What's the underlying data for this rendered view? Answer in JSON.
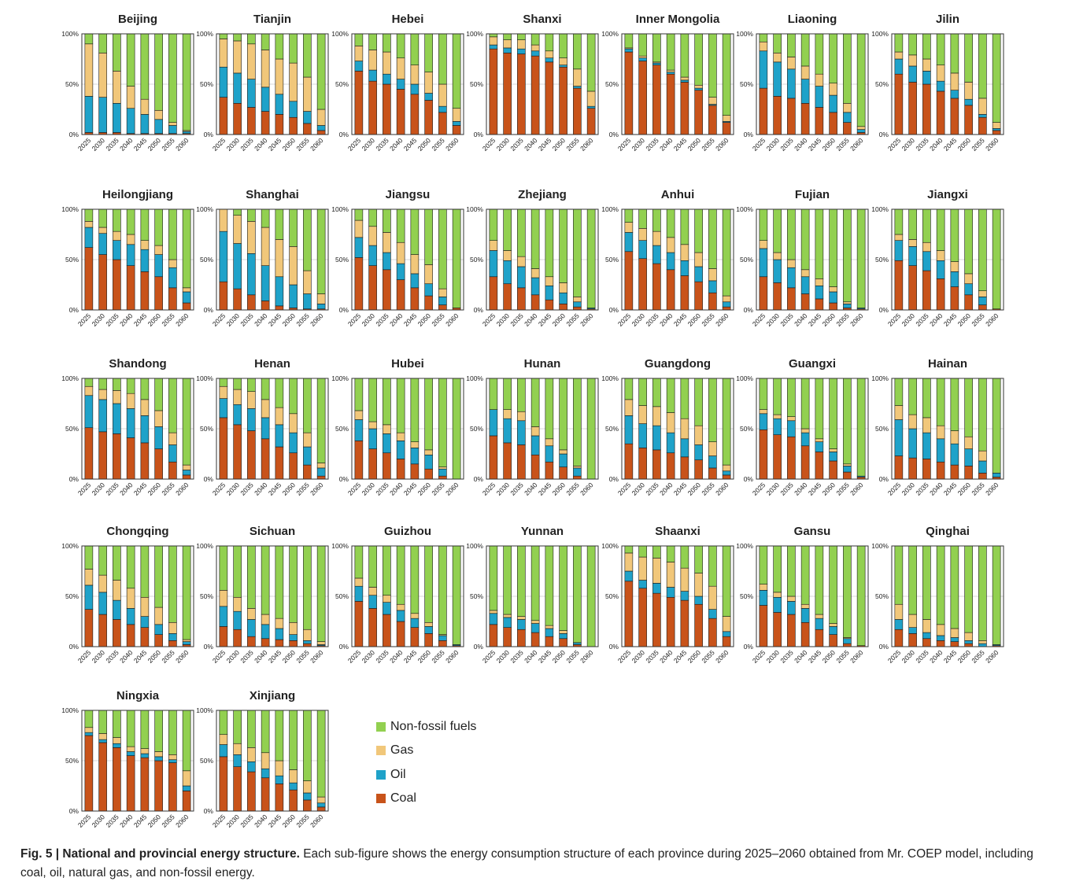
{
  "caption": {
    "label": "Fig. 5 | National and provincial energy structure.",
    "text": " Each sub-figure shows the energy consumption structure of each province during 2025–2060 obtained from Mr. COEP model, including coal, oil, natural gas, and non-fossil energy."
  },
  "legend": [
    {
      "name": "Non-fossil fuels",
      "color": "#92d050"
    },
    {
      "name": "Gas",
      "color": "#f1c77a"
    },
    {
      "name": "Oil",
      "color": "#1fa2c9"
    },
    {
      "name": "Coal",
      "color": "#c8531a"
    }
  ],
  "chart_data": {
    "type": "bar",
    "stacked": true,
    "categories": [
      "2025",
      "2030",
      "2035",
      "2040",
      "2045",
      "2050",
      "2055",
      "2060"
    ],
    "ylim": [
      0,
      100
    ],
    "yticks": [
      "0%",
      "50%",
      "100%"
    ],
    "series_order": [
      "Coal",
      "Oil",
      "Gas",
      "Non-fossil fuels"
    ],
    "colors": {
      "Coal": "#c8531a",
      "Oil": "#1fa2c9",
      "Gas": "#f1c77a",
      "Non-fossil fuels": "#92d050"
    },
    "panels": [
      {
        "title": "Beijing",
        "coal": [
          2,
          2,
          2,
          1,
          1,
          1,
          1,
          1
        ],
        "oil": [
          36,
          35,
          29,
          25,
          19,
          14,
          8,
          2
        ],
        "gas": [
          52,
          44,
          32,
          22,
          15,
          9,
          3,
          1
        ]
      },
      {
        "title": "Tianjin",
        "coal": [
          37,
          31,
          27,
          23,
          20,
          17,
          11,
          4
        ],
        "oil": [
          30,
          30,
          28,
          24,
          20,
          16,
          12,
          5
        ],
        "gas": [
          28,
          32,
          35,
          37,
          35,
          38,
          34,
          16
        ]
      },
      {
        "title": "Hebei",
        "coal": [
          63,
          53,
          50,
          45,
          40,
          34,
          22,
          9
        ],
        "oil": [
          10,
          11,
          10,
          10,
          10,
          7,
          6,
          4
        ],
        "gas": [
          15,
          20,
          22,
          21,
          19,
          21,
          22,
          13
        ]
      },
      {
        "title": "Shanxi",
        "coal": [
          85,
          81,
          80,
          78,
          72,
          67,
          46,
          26
        ],
        "oil": [
          4,
          5,
          5,
          5,
          4,
          2,
          2,
          2
        ],
        "gas": [
          8,
          8,
          9,
          6,
          7,
          7,
          17,
          15
        ]
      },
      {
        "title": "Inner Mongolia",
        "coal": [
          82,
          73,
          69,
          60,
          52,
          44,
          29,
          12
        ],
        "oil": [
          3,
          3,
          2,
          2,
          2,
          2,
          1,
          1
        ],
        "gas": [
          1,
          2,
          1,
          2,
          3,
          3,
          7,
          6
        ]
      },
      {
        "title": "Liaoning",
        "coal": [
          46,
          38,
          36,
          31,
          27,
          22,
          12,
          2
        ],
        "oil": [
          37,
          34,
          29,
          24,
          21,
          17,
          10,
          3
        ],
        "gas": [
          9,
          9,
          12,
          13,
          12,
          12,
          9,
          3
        ]
      },
      {
        "title": "Jilin",
        "coal": [
          60,
          52,
          50,
          43,
          36,
          29,
          17,
          4
        ],
        "oil": [
          15,
          16,
          13,
          10,
          8,
          6,
          3,
          2
        ],
        "gas": [
          7,
          11,
          12,
          16,
          17,
          17,
          16,
          6
        ]
      },
      {
        "title": "Heilongjiang",
        "coal": [
          62,
          55,
          50,
          44,
          38,
          33,
          22,
          7
        ],
        "oil": [
          20,
          21,
          19,
          21,
          22,
          22,
          20,
          11
        ],
        "gas": [
          6,
          6,
          9,
          10,
          9,
          9,
          8,
          4
        ]
      },
      {
        "title": "Shanghai",
        "coal": [
          28,
          21,
          15,
          9,
          4,
          2,
          1,
          1
        ],
        "oil": [
          50,
          45,
          41,
          35,
          29,
          23,
          15,
          5
        ],
        "gas": [
          22,
          28,
          32,
          38,
          37,
          38,
          23,
          10
        ]
      },
      {
        "title": "Jiangsu",
        "coal": [
          52,
          44,
          40,
          30,
          22,
          14,
          5,
          2
        ],
        "oil": [
          20,
          20,
          17,
          16,
          14,
          12,
          8,
          0
        ],
        "gas": [
          17,
          19,
          20,
          21,
          19,
          19,
          8,
          0
        ]
      },
      {
        "title": "Zhejiang",
        "coal": [
          33,
          26,
          22,
          15,
          10,
          6,
          3,
          1
        ],
        "oil": [
          26,
          23,
          21,
          17,
          14,
          11,
          5,
          1
        ],
        "gas": [
          10,
          10,
          10,
          9,
          9,
          10,
          5,
          0
        ]
      },
      {
        "title": "Anhui",
        "coal": [
          58,
          51,
          46,
          40,
          34,
          28,
          17,
          3
        ],
        "oil": [
          19,
          18,
          18,
          17,
          15,
          15,
          12,
          5
        ],
        "gas": [
          10,
          12,
          14,
          15,
          16,
          14,
          12,
          6
        ]
      },
      {
        "title": "Fujian",
        "coal": [
          33,
          27,
          22,
          16,
          11,
          7,
          2,
          1
        ],
        "oil": [
          28,
          23,
          20,
          17,
          13,
          11,
          4,
          1
        ],
        "gas": [
          8,
          7,
          8,
          7,
          7,
          5,
          2,
          0
        ]
      },
      {
        "title": "Jiangxi",
        "coal": [
          49,
          44,
          39,
          31,
          23,
          15,
          5,
          1
        ],
        "oil": [
          20,
          19,
          19,
          18,
          15,
          11,
          8,
          0
        ],
        "gas": [
          6,
          7,
          9,
          10,
          10,
          10,
          6,
          0
        ]
      },
      {
        "title": "Shandong",
        "coal": [
          51,
          47,
          45,
          41,
          36,
          30,
          17,
          4
        ],
        "oil": [
          32,
          32,
          30,
          29,
          27,
          22,
          17,
          5
        ],
        "gas": [
          9,
          10,
          13,
          15,
          16,
          16,
          12,
          5
        ]
      },
      {
        "title": "Henan",
        "coal": [
          61,
          54,
          48,
          40,
          32,
          26,
          14,
          3
        ],
        "oil": [
          19,
          20,
          22,
          21,
          22,
          20,
          18,
          8
        ],
        "gas": [
          12,
          15,
          17,
          18,
          17,
          19,
          14,
          5
        ]
      },
      {
        "title": "Hubei",
        "coal": [
          38,
          30,
          26,
          20,
          15,
          10,
          3,
          0
        ],
        "oil": [
          21,
          20,
          19,
          18,
          16,
          14,
          7,
          0
        ],
        "gas": [
          9,
          7,
          9,
          8,
          6,
          5,
          2,
          0
        ]
      },
      {
        "title": "Hunan",
        "coal": [
          43,
          36,
          34,
          24,
          17,
          12,
          3,
          0
        ],
        "oil": [
          26,
          24,
          24,
          19,
          16,
          13,
          8,
          0
        ],
        "gas": [
          0,
          9,
          9,
          9,
          7,
          4,
          2,
          0
        ]
      },
      {
        "title": "Guangdong",
        "coal": [
          35,
          31,
          29,
          26,
          22,
          19,
          11,
          4
        ],
        "oil": [
          28,
          24,
          24,
          20,
          18,
          15,
          12,
          4
        ],
        "gas": [
          16,
          18,
          19,
          20,
          20,
          19,
          14,
          6
        ]
      },
      {
        "title": "Guangxi",
        "coal": [
          49,
          44,
          42,
          33,
          27,
          18,
          7,
          2
        ],
        "oil": [
          16,
          16,
          16,
          13,
          10,
          9,
          6,
          1
        ],
        "gas": [
          4,
          4,
          4,
          4,
          3,
          3,
          2,
          0
        ]
      },
      {
        "title": "Hainan",
        "coal": [
          23,
          21,
          20,
          17,
          14,
          13,
          6,
          2
        ],
        "oil": [
          36,
          29,
          26,
          23,
          21,
          17,
          12,
          4
        ],
        "gas": [
          14,
          14,
          15,
          13,
          13,
          12,
          10,
          0
        ]
      },
      {
        "title": "Chongqing",
        "coal": [
          37,
          32,
          27,
          22,
          19,
          12,
          6,
          2
        ],
        "oil": [
          24,
          22,
          19,
          16,
          11,
          10,
          7,
          3
        ],
        "gas": [
          16,
          17,
          20,
          20,
          19,
          17,
          11,
          2
        ]
      },
      {
        "title": "Sichuan",
        "coal": [
          20,
          17,
          10,
          8,
          7,
          6,
          3,
          1
        ],
        "oil": [
          20,
          18,
          17,
          14,
          11,
          6,
          3,
          1
        ],
        "gas": [
          16,
          14,
          11,
          10,
          10,
          12,
          11,
          3
        ]
      },
      {
        "title": "Guizhou",
        "coal": [
          45,
          38,
          32,
          25,
          19,
          13,
          6,
          1
        ],
        "oil": [
          15,
          13,
          12,
          11,
          9,
          7,
          5,
          1
        ],
        "gas": [
          8,
          8,
          7,
          6,
          5,
          4,
          1,
          0
        ]
      },
      {
        "title": "Yunnan",
        "coal": [
          22,
          19,
          17,
          14,
          10,
          8,
          2,
          0
        ],
        "oil": [
          11,
          10,
          10,
          9,
          8,
          5,
          2,
          0
        ],
        "gas": [
          3,
          3,
          3,
          3,
          3,
          3,
          0,
          0
        ]
      },
      {
        "title": "Shaanxi",
        "coal": [
          65,
          58,
          53,
          49,
          46,
          42,
          28,
          10
        ],
        "oil": [
          10,
          8,
          10,
          10,
          9,
          8,
          9,
          5
        ],
        "gas": [
          18,
          23,
          25,
          25,
          23,
          23,
          23,
          15
        ]
      },
      {
        "title": "Gansu",
        "coal": [
          41,
          34,
          32,
          24,
          17,
          12,
          3,
          1
        ],
        "oil": [
          15,
          15,
          13,
          14,
          11,
          8,
          5,
          0
        ],
        "gas": [
          6,
          5,
          5,
          4,
          4,
          3,
          1,
          0
        ]
      },
      {
        "title": "Qinghai",
        "coal": [
          17,
          13,
          8,
          6,
          5,
          3,
          0,
          1
        ],
        "oil": [
          10,
          6,
          6,
          5,
          4,
          3,
          3,
          1
        ],
        "gas": [
          15,
          13,
          13,
          11,
          9,
          8,
          3,
          0
        ]
      },
      {
        "title": "Ningxia",
        "coal": [
          75,
          68,
          63,
          55,
          53,
          50,
          48,
          20
        ],
        "oil": [
          3,
          3,
          4,
          4,
          4,
          4,
          3,
          5
        ],
        "gas": [
          5,
          6,
          6,
          5,
          5,
          5,
          5,
          15
        ]
      },
      {
        "title": "Xinjiang",
        "coal": [
          54,
          44,
          39,
          33,
          27,
          21,
          11,
          4
        ],
        "oil": [
          12,
          12,
          10,
          9,
          8,
          7,
          7,
          4
        ],
        "gas": [
          10,
          11,
          14,
          16,
          15,
          13,
          12,
          6
        ]
      }
    ]
  }
}
